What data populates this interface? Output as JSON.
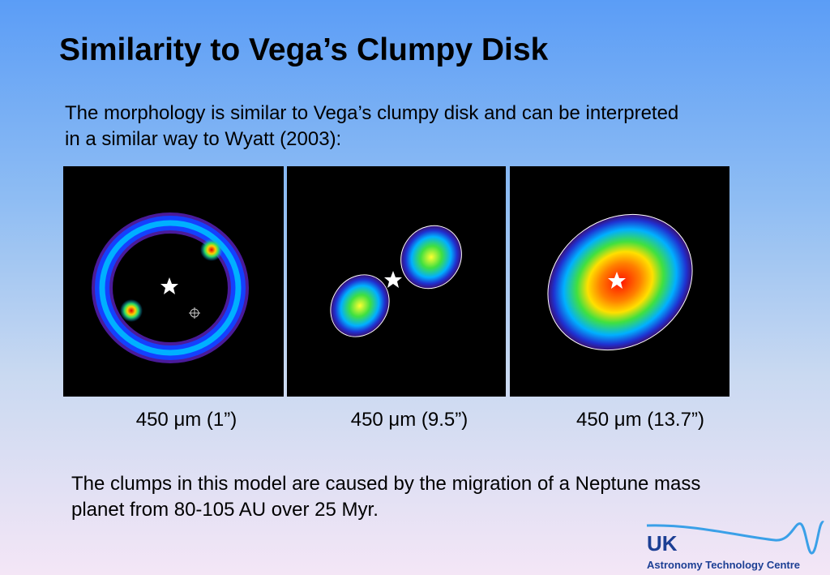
{
  "header": {
    "title": "Similarity to Vega’s Clumpy Disk"
  },
  "intro": {
    "lines": [
      "The morphology is similar to Vega’s clumpy disk and can be interpreted",
      "in a similar way to Wyatt (2003):"
    ]
  },
  "panels": [
    {
      "caption": "450 μm (1”)"
    },
    {
      "caption": "450 μm (9.5”)"
    },
    {
      "caption": "450 μm (13.7”)"
    }
  ],
  "conclusion": {
    "lines": [
      "The clumps in this model are caused by the migration of a Neptune mass",
      "planet from 80-105 AU over 25 Myr."
    ]
  },
  "logo": {
    "short": "UK",
    "name": "Astronomy Technology Centre"
  }
}
